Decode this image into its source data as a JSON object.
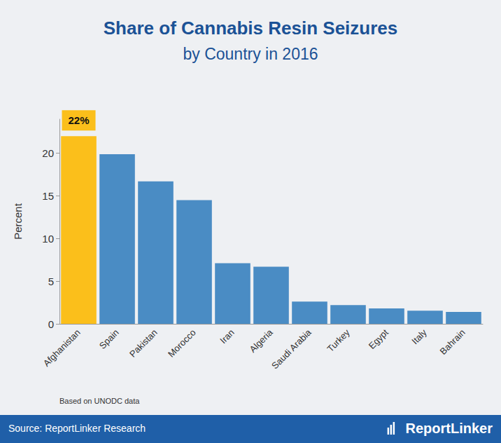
{
  "chart_data": {
    "type": "bar",
    "title": "Share of Cannabis Resin Seizures",
    "subtitle": "by Country in 2016",
    "y_label": "Percent",
    "categories": [
      "Afghanistan",
      "Spain",
      "Pakistan",
      "Morocco",
      "Iran",
      "Algeria",
      "Saudi Arabia",
      "Turkey",
      "Egypt",
      "Italy",
      "Bahrain"
    ],
    "values": [
      22,
      19.9,
      16.7,
      14.5,
      7.1,
      6.7,
      2.6,
      2.2,
      1.8,
      1.55,
      1.4
    ],
    "value_labels": [
      "22%",
      null,
      null,
      null,
      null,
      null,
      null,
      null,
      null,
      null,
      null
    ],
    "data_labels": true,
    "colors": [
      "#fbbf1b",
      "#4a8cc4",
      "#4a8cc4",
      "#4a8cc4",
      "#4a8cc4",
      "#4a8cc4",
      "#4a8cc4",
      "#4a8cc4",
      "#4a8cc4",
      "#4a8cc4",
      "#4a8cc4"
    ],
    "ylim": [
      0,
      24
    ],
    "yticks": [
      0,
      5,
      10,
      15,
      20
    ],
    "grid": false,
    "note": "Based on UNODC data",
    "source": "Source: ReportLinker Research",
    "brand": "ReportLinker"
  }
}
